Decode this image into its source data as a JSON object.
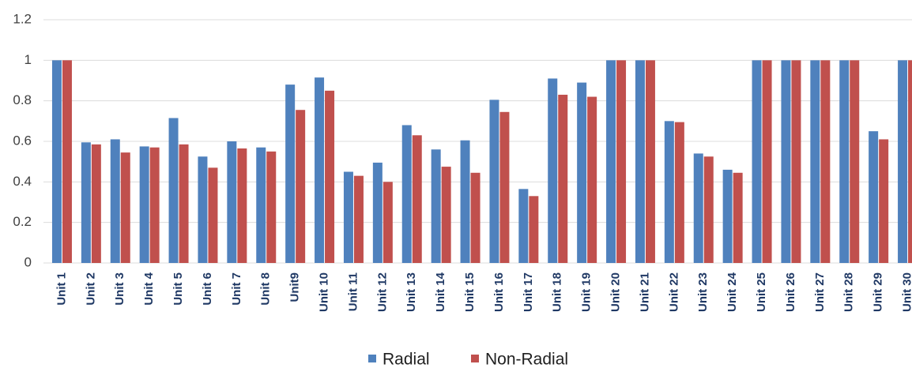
{
  "chart_data": {
    "type": "bar",
    "categories": [
      "Unit 1",
      "Unit 2",
      "Unit 3",
      "Unit 4",
      "Unit 5",
      "Unit 6",
      "Unit 7",
      "Unit 8",
      "Unit9",
      "Unit 10",
      "Unit 11",
      "Unit 12",
      "Unit 13",
      "Unit 14",
      "Unit 15",
      "Unit 16",
      "Unit 17",
      "Unit 18",
      "Unit 19",
      "Unit 20",
      "Unit 21",
      "Unit 22",
      "Unit 23",
      "Unit 24",
      "Unit 25",
      "Unit 26",
      "Unit 27",
      "Unit 28",
      "Unit 29",
      "Unit 30"
    ],
    "series": [
      {
        "name": "Radial",
        "color": "#4f81bd",
        "values": [
          1,
          0.595,
          0.61,
          0.575,
          0.715,
          0.525,
          0.6,
          0.57,
          0.88,
          0.915,
          0.45,
          0.495,
          0.68,
          0.56,
          0.605,
          0.805,
          0.365,
          0.91,
          0.89,
          1,
          1,
          0.7,
          0.54,
          0.46,
          1,
          1,
          1,
          1,
          0.65,
          1
        ]
      },
      {
        "name": "Non-Radial",
        "color": "#c0504d",
        "values": [
          1,
          0.585,
          0.545,
          0.57,
          0.585,
          0.47,
          0.565,
          0.55,
          0.755,
          0.85,
          0.43,
          0.4,
          0.63,
          0.475,
          0.445,
          0.745,
          0.33,
          0.83,
          0.82,
          1,
          1,
          0.695,
          0.525,
          0.445,
          1,
          1,
          1,
          1,
          0.61,
          1
        ]
      }
    ],
    "ylim": [
      0,
      1.2
    ],
    "yticks": [
      0,
      0.2,
      0.4,
      0.6,
      0.8,
      1,
      1.2
    ],
    "grid": true,
    "legend": "bottom"
  }
}
